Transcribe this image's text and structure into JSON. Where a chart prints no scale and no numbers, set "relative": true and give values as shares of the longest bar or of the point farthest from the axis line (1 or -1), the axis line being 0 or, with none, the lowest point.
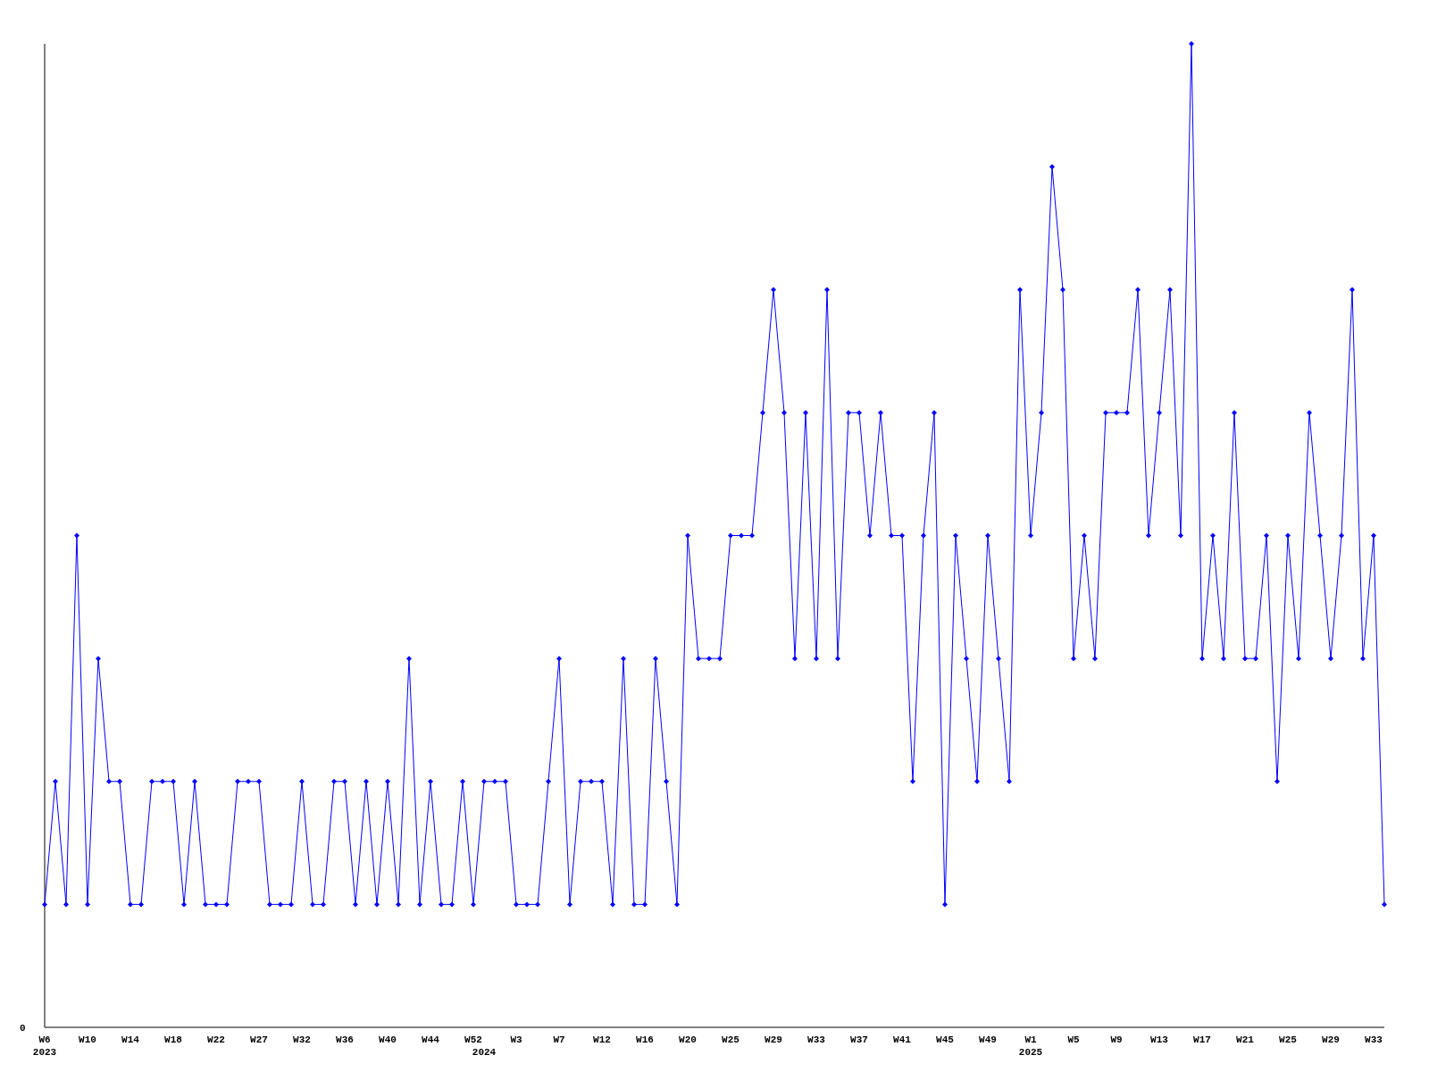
{
  "chart_data": {
    "type": "line",
    "relative": true,
    "marker": "diamond",
    "line_style": "solid",
    "categories": [
      "W6\n2023",
      null,
      null,
      null,
      "W10",
      null,
      null,
      null,
      "W14",
      null,
      null,
      null,
      "W18",
      null,
      null,
      null,
      "W22",
      null,
      null,
      null,
      "W27",
      null,
      null,
      null,
      "W32",
      null,
      null,
      null,
      "W36",
      null,
      null,
      null,
      "W40",
      null,
      null,
      null,
      "W44",
      null,
      null,
      null,
      "W52",
      "\n2024",
      null,
      null,
      "W3",
      null,
      null,
      null,
      "W7",
      null,
      null,
      null,
      "W12",
      null,
      null,
      null,
      "W16",
      null,
      null,
      null,
      "W20",
      null,
      null,
      null,
      "W25",
      null,
      null,
      null,
      "W29",
      null,
      null,
      null,
      "W33",
      null,
      null,
      null,
      "W37",
      null,
      null,
      null,
      "W41",
      null,
      null,
      null,
      "W45",
      null,
      null,
      null,
      "W49",
      null,
      null,
      null,
      "W1\n2025",
      null,
      null,
      null,
      "W5",
      null,
      null,
      null,
      "W9",
      null,
      null,
      null,
      "W13",
      null,
      null,
      null,
      "W17",
      null,
      null,
      null,
      "W21",
      null,
      null,
      null,
      "W25",
      null,
      null,
      null,
      "W29",
      null,
      null,
      null,
      "W33",
      null
    ],
    "series": [
      {
        "color": "#0000ff",
        "values": [
          0.125,
          0.25,
          0.125,
          0.5,
          0.125,
          0.375,
          0.25,
          0.25,
          0.125,
          0.125,
          0.25,
          0.25,
          0.25,
          0.125,
          0.25,
          0.125,
          0.125,
          0.125,
          0.25,
          0.25,
          0.25,
          0.125,
          0.125,
          0.125,
          0.25,
          0.125,
          0.125,
          0.25,
          0.25,
          0.125,
          0.25,
          0.125,
          0.25,
          0.125,
          0.375,
          0.125,
          0.25,
          0.125,
          0.125,
          0.25,
          0.125,
          0.25,
          0.25,
          0.25,
          0.125,
          0.125,
          0.125,
          0.25,
          0.375,
          0.125,
          0.25,
          0.25,
          0.25,
          0.125,
          0.375,
          0.125,
          0.125,
          0.375,
          0.25,
          0.125,
          0.5,
          0.375,
          0.375,
          0.375,
          0.5,
          0.5,
          0.5,
          0.625,
          0.75,
          0.625,
          0.375,
          0.625,
          0.375,
          0.75,
          0.375,
          0.625,
          0.625,
          0.5,
          0.625,
          0.5,
          0.5,
          0.25,
          0.5,
          0.625,
          0.125,
          0.5,
          0.375,
          0.25,
          0.5,
          0.375,
          0.25,
          0.75,
          0.5,
          0.625,
          0.875,
          0.75,
          0.375,
          0.5,
          0.375,
          0.625,
          0.625,
          0.625,
          0.75,
          0.5,
          0.625,
          0.75,
          0.5,
          1,
          0.375,
          0.5,
          0.375,
          0.625,
          0.375,
          0.375,
          0.5,
          0.25,
          0.5,
          0.375,
          0.625,
          0.5,
          0.375,
          0.5,
          0.75,
          0.375,
          0.5,
          0.125
        ]
      }
    ],
    "annotations": [
      "0"
    ]
  }
}
